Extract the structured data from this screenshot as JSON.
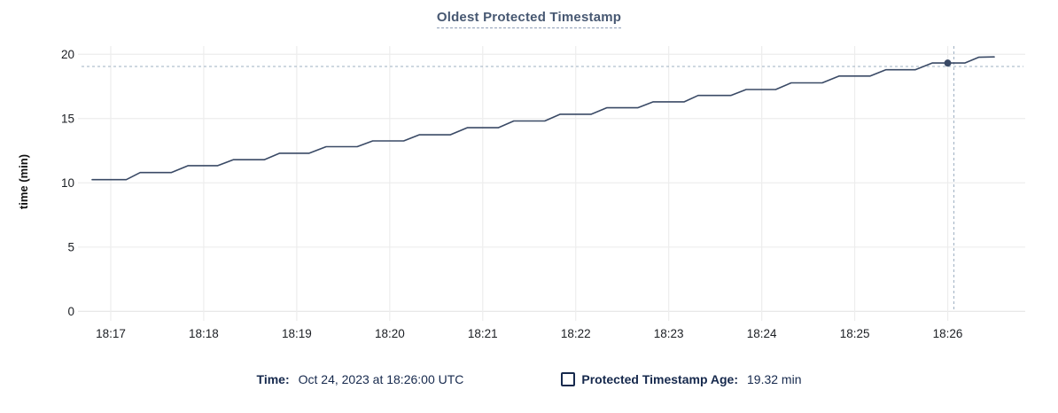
{
  "title": "Oldest Protected Timestamp",
  "legend": {
    "time_label": "Time:",
    "time_value": "Oct 24, 2023 at 18:26:00 UTC",
    "series_label": "Protected Timestamp Age:",
    "series_value": "19.32 min",
    "series_checkbox_checked": false
  },
  "colors": {
    "title": "#475872",
    "series_line": "#3a4a66",
    "gridline": "#ededed",
    "axis_line": "#e5e5e5",
    "axis_label": "#1b1e23",
    "crosshair": "#9eb0c2",
    "legend_text": "#16294d"
  },
  "chart_data": {
    "type": "line",
    "title": "Oldest Protected Timestamp",
    "xlabel": "",
    "ylabel": "time (min)",
    "grid": true,
    "legend_position": "bottom",
    "ylim": [
      0,
      20
    ],
    "y_ticks": [
      0,
      5,
      10,
      15,
      20
    ],
    "x_ticks": [
      "18:17",
      "18:18",
      "18:19",
      "18:20",
      "18:21",
      "18:22",
      "18:23",
      "18:24",
      "18:25",
      "18:26"
    ],
    "x_range": [
      "18:16:40",
      "18:26:50"
    ],
    "series": [
      {
        "name": "Protected Timestamp Age",
        "unit": "min",
        "x": [
          "18:16:48",
          "18:17:10",
          "18:17:19",
          "18:17:39",
          "18:17:50",
          "18:18:09",
          "18:18:19",
          "18:18:39",
          "18:18:49",
          "18:19:08",
          "18:19:19",
          "18:19:39",
          "18:19:49",
          "18:20:09",
          "18:20:19",
          "18:20:39",
          "18:20:50",
          "18:21:10",
          "18:21:20",
          "18:21:40",
          "18:21:50",
          "18:22:10",
          "18:22:20",
          "18:22:40",
          "18:22:50",
          "18:23:10",
          "18:23:19",
          "18:23:40",
          "18:23:50",
          "18:24:09",
          "18:24:19",
          "18:24:39",
          "18:24:50",
          "18:25:10",
          "18:25:20",
          "18:25:39",
          "18:25:50",
          "18:26:11",
          "18:26:20",
          "18:26:30"
        ],
        "values": [
          10.25,
          10.25,
          10.8,
          10.8,
          11.34,
          11.34,
          11.8,
          11.8,
          12.3,
          12.3,
          12.81,
          12.81,
          13.26,
          13.26,
          13.74,
          13.74,
          14.29,
          14.29,
          14.81,
          14.81,
          15.34,
          15.34,
          15.84,
          15.84,
          16.3,
          16.3,
          16.8,
          16.8,
          17.26,
          17.26,
          17.78,
          17.78,
          18.31,
          18.31,
          18.8,
          18.8,
          19.32,
          19.32,
          19.77,
          19.8
        ]
      }
    ],
    "crosshair": {
      "hover_time": "18:26:04",
      "hover_value": 19.05,
      "point_time": "18:26:00",
      "point_value": 19.32
    }
  }
}
